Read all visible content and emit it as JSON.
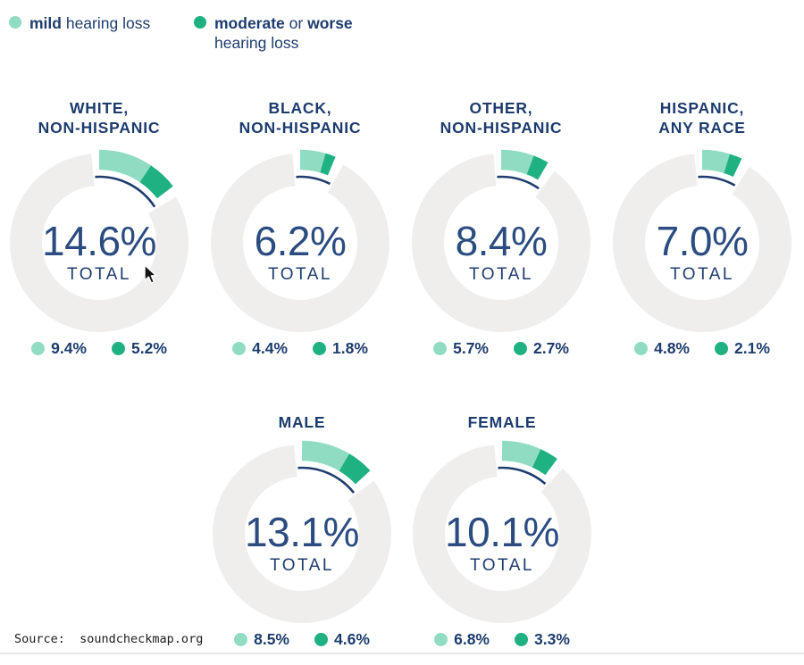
{
  "legend": {
    "mild_bold": "mild",
    "mild_rest": " hearing loss",
    "moderate_bold": "moderate",
    "moderate_mid": " or ",
    "moderate_bold2": "worse",
    "moderate_line2": "hearing loss"
  },
  "source": "Source:  soundcheckmap.org",
  "colors": {
    "mild": "#90dcc2",
    "moderate": "#1fb182",
    "navy": "#1d3c6e",
    "number": "#2b4c80",
    "ring": "#efeeed",
    "underline": "#1d3c6e"
  },
  "chart_data": {
    "type": "pie",
    "subtype": "donut-grid",
    "unit": "%",
    "series_names": [
      "mild hearing loss",
      "moderate or worse hearing loss"
    ],
    "total_word": "TOTAL",
    "charts": [
      {
        "label": "WHITE,\nNON-HISPANIC",
        "total_pct": 14.6,
        "total_label": "14.6%",
        "mild_pct": 9.4,
        "mild_label": "9.4%",
        "moderate_pct": 5.2,
        "moderate_label": "5.2%"
      },
      {
        "label": "BLACK,\nNON-HISPANIC",
        "total_pct": 6.2,
        "total_label": "6.2%",
        "mild_pct": 4.4,
        "mild_label": "4.4%",
        "moderate_pct": 1.8,
        "moderate_label": "1.8%"
      },
      {
        "label": "OTHER,\nNON-HISPANIC",
        "total_pct": 8.4,
        "total_label": "8.4%",
        "mild_pct": 5.7,
        "mild_label": "5.7%",
        "moderate_pct": 2.7,
        "moderate_label": "2.7%"
      },
      {
        "label": "HISPANIC,\nANY RACE",
        "total_pct": 7.0,
        "total_label": "7.0%",
        "mild_pct": 4.8,
        "mild_label": "4.8%",
        "moderate_pct": 2.1,
        "moderate_label": "2.1%"
      },
      {
        "label": "MALE",
        "total_pct": 13.1,
        "total_label": "13.1%",
        "mild_pct": 8.5,
        "mild_label": "8.5%",
        "moderate_pct": 4.6,
        "moderate_label": "4.6%"
      },
      {
        "label": "FEMALE",
        "total_pct": 10.1,
        "total_label": "10.1%",
        "mild_pct": 6.8,
        "mild_label": "6.8%",
        "moderate_pct": 3.3,
        "moderate_label": "3.3%"
      }
    ]
  }
}
